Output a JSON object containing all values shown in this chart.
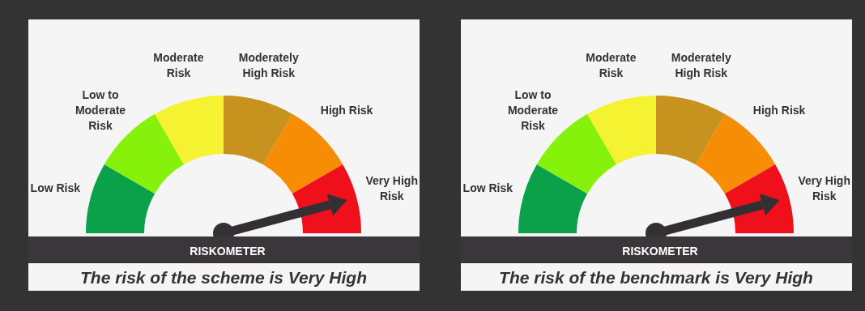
{
  "chart_data": [
    {
      "type": "donut",
      "title": "RISKOMETER",
      "annotations": [
        "The risk of the scheme is Very High"
      ],
      "categories": [
        "Low Risk",
        "Low to Moderate Risk",
        "Moderate Risk",
        "Moderately High Risk",
        "High Risk",
        "Very High Risk"
      ],
      "values": [
        16.67,
        16.67,
        16.67,
        16.67,
        16.66,
        16.66
      ],
      "colors": [
        "#0aa14a",
        "#86f20c",
        "#f5f232",
        "#c8921f",
        "#f78c05",
        "#f0101c"
      ],
      "needle": "Very High Risk"
    },
    {
      "type": "donut",
      "title": "RISKOMETER",
      "annotations": [
        "The risk of the benchmark is Very High"
      ],
      "categories": [
        "Low Risk",
        "Low to Moderate Risk",
        "Moderate Risk",
        "Moderately High Risk",
        "High Risk",
        "Very High Risk"
      ],
      "values": [
        16.67,
        16.67,
        16.67,
        16.67,
        16.66,
        16.66
      ],
      "colors": [
        "#0aa14a",
        "#86f20c",
        "#f5f232",
        "#c8921f",
        "#f78c05",
        "#f0101c"
      ],
      "needle": "Very High Risk"
    }
  ]
}
